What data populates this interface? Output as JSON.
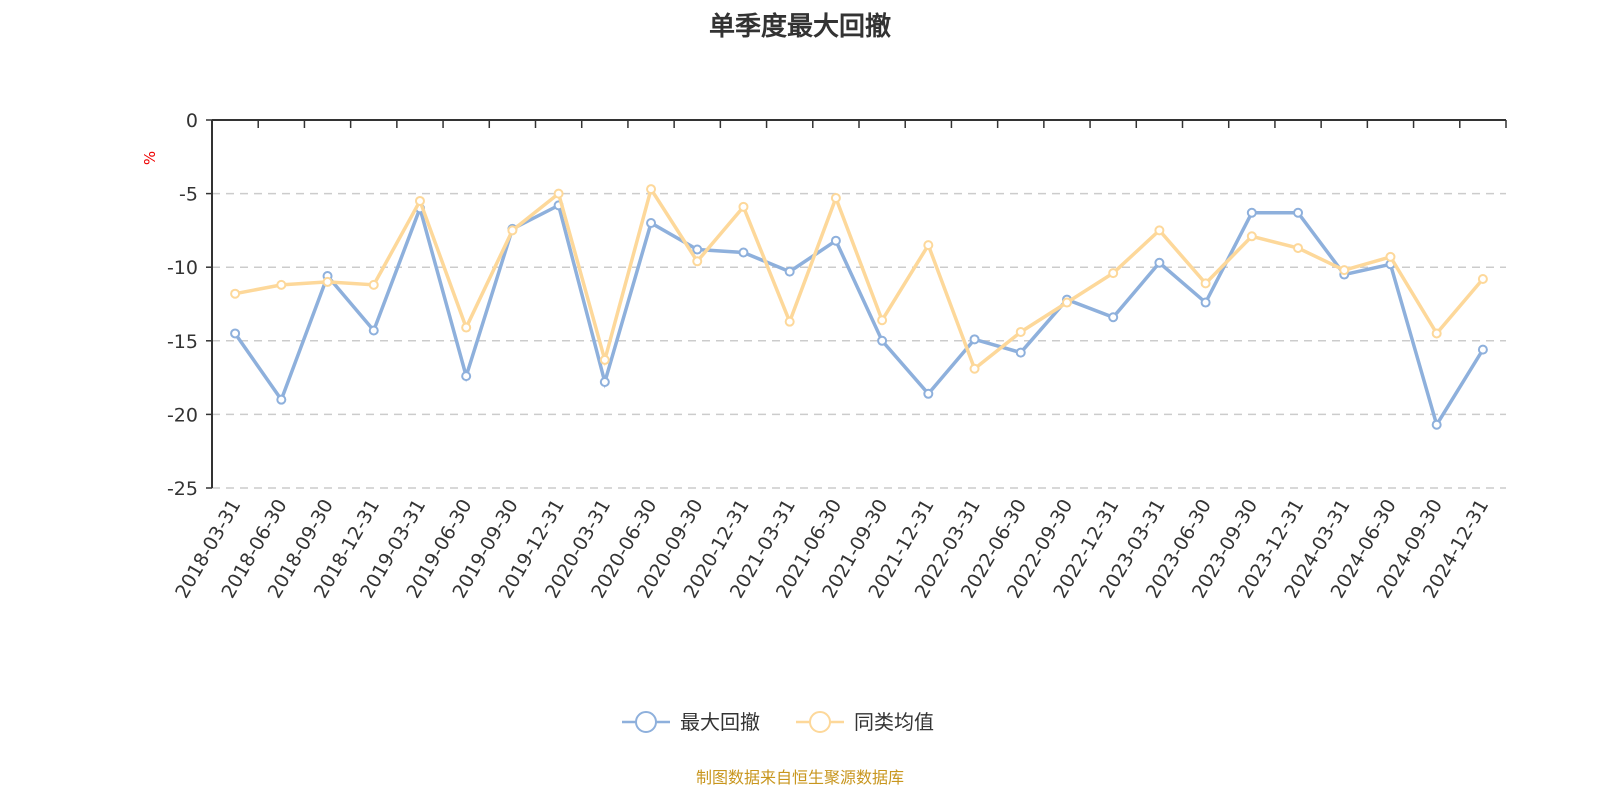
{
  "chart_data": {
    "type": "line",
    "title": "单季度最大回撤",
    "ylabel": "%",
    "ylim": [
      -25,
      0
    ],
    "yticks": [
      0,
      -5,
      -10,
      -15,
      -20,
      -25
    ],
    "grid": true,
    "legend_placement": "bottom",
    "categories": [
      "2018-03-31",
      "2018-06-30",
      "2018-09-30",
      "2018-12-31",
      "2019-03-31",
      "2019-06-30",
      "2019-09-30",
      "2019-12-31",
      "2020-03-31",
      "2020-06-30",
      "2020-09-30",
      "2020-12-31",
      "2021-03-31",
      "2021-06-30",
      "2021-09-30",
      "2021-12-31",
      "2022-03-31",
      "2022-06-30",
      "2022-09-30",
      "2022-12-31",
      "2023-03-31",
      "2023-06-30",
      "2023-09-30",
      "2023-12-31",
      "2024-03-31",
      "2024-06-30",
      "2024-09-30",
      "2024-12-31"
    ],
    "series": [
      {
        "name": "最大回撤",
        "color": "#8eb0dc",
        "values": [
          -14.5,
          -19.0,
          -10.6,
          -14.3,
          -6.0,
          -17.4,
          -7.4,
          -5.8,
          -17.8,
          -7.0,
          -8.8,
          -9.0,
          -10.3,
          -8.2,
          -15.0,
          -18.6,
          -14.9,
          -15.8,
          -12.2,
          -13.4,
          -9.7,
          -12.4,
          -6.3,
          -6.3,
          -10.5,
          -9.8,
          -20.7,
          -15.6
        ]
      },
      {
        "name": "同类均值",
        "color": "#fdd89a",
        "values": [
          -11.8,
          -11.2,
          -11.0,
          -11.2,
          -5.5,
          -14.1,
          -7.5,
          -5.0,
          -16.3,
          -4.7,
          -9.6,
          -5.9,
          -13.7,
          -5.3,
          -13.6,
          -8.5,
          -16.9,
          -14.4,
          -12.4,
          -10.4,
          -7.5,
          -11.1,
          -7.9,
          -8.7,
          -10.2,
          -9.3,
          -14.5,
          -10.8
        ]
      }
    ]
  },
  "source": "制图数据来自恒生聚源数据库"
}
